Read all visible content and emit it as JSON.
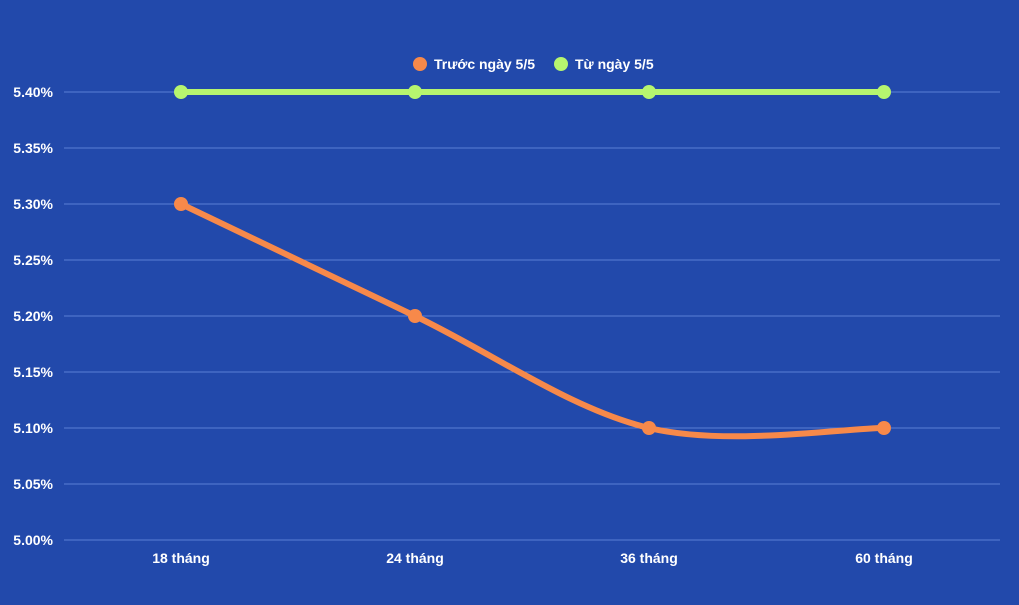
{
  "chart_data": {
    "type": "line",
    "categories": [
      "18 tháng",
      "24 tháng",
      "36 tháng",
      "60 tháng"
    ],
    "series": [
      {
        "name": "Trước ngày 5/5",
        "values": [
          5.3,
          5.2,
          5.1,
          5.1
        ],
        "color": "#f7894a",
        "smooth": true
      },
      {
        "name": "Từ ngày 5/5",
        "values": [
          5.4,
          5.4,
          5.4,
          5.4
        ],
        "color": "#b6f56f",
        "smooth": false
      }
    ],
    "y_ticks": [
      "5.00%",
      "5.05%",
      "5.10%",
      "5.15%",
      "5.20%",
      "5.25%",
      "5.30%",
      "5.35%",
      "5.40%"
    ],
    "ylim": [
      5.0,
      5.4
    ],
    "grid": true,
    "legend_position": "top",
    "background_color": "#2249ab",
    "title": "",
    "xlabel": "",
    "ylabel": ""
  }
}
